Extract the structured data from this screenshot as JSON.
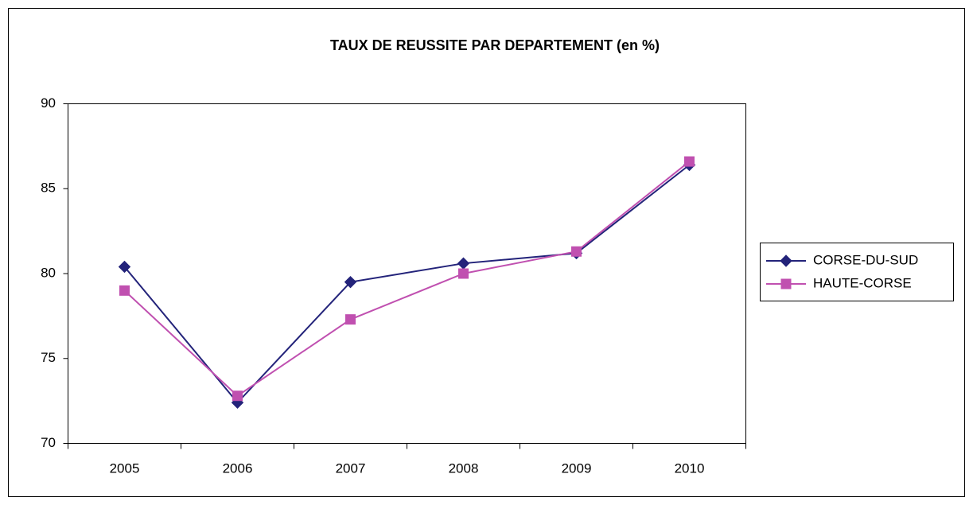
{
  "chart_data": {
    "type": "line",
    "title": "TAUX DE REUSSITE PAR DEPARTEMENT (en %)",
    "categories": [
      "2005",
      "2006",
      "2007",
      "2008",
      "2009",
      "2010"
    ],
    "series": [
      {
        "name": "CORSE-DU-SUD",
        "color": "#23237a",
        "marker": "diamond",
        "values": [
          80.4,
          72.4,
          79.5,
          80.6,
          81.2,
          86.4
        ]
      },
      {
        "name": "HAUTE-CORSE",
        "color": "#c050b0",
        "marker": "square",
        "values": [
          79.0,
          72.8,
          77.3,
          80.0,
          81.3,
          86.6
        ]
      }
    ],
    "ylim": [
      70,
      90
    ],
    "yticks": [
      70,
      75,
      80,
      85,
      90
    ],
    "grid": false,
    "legend": "right"
  }
}
